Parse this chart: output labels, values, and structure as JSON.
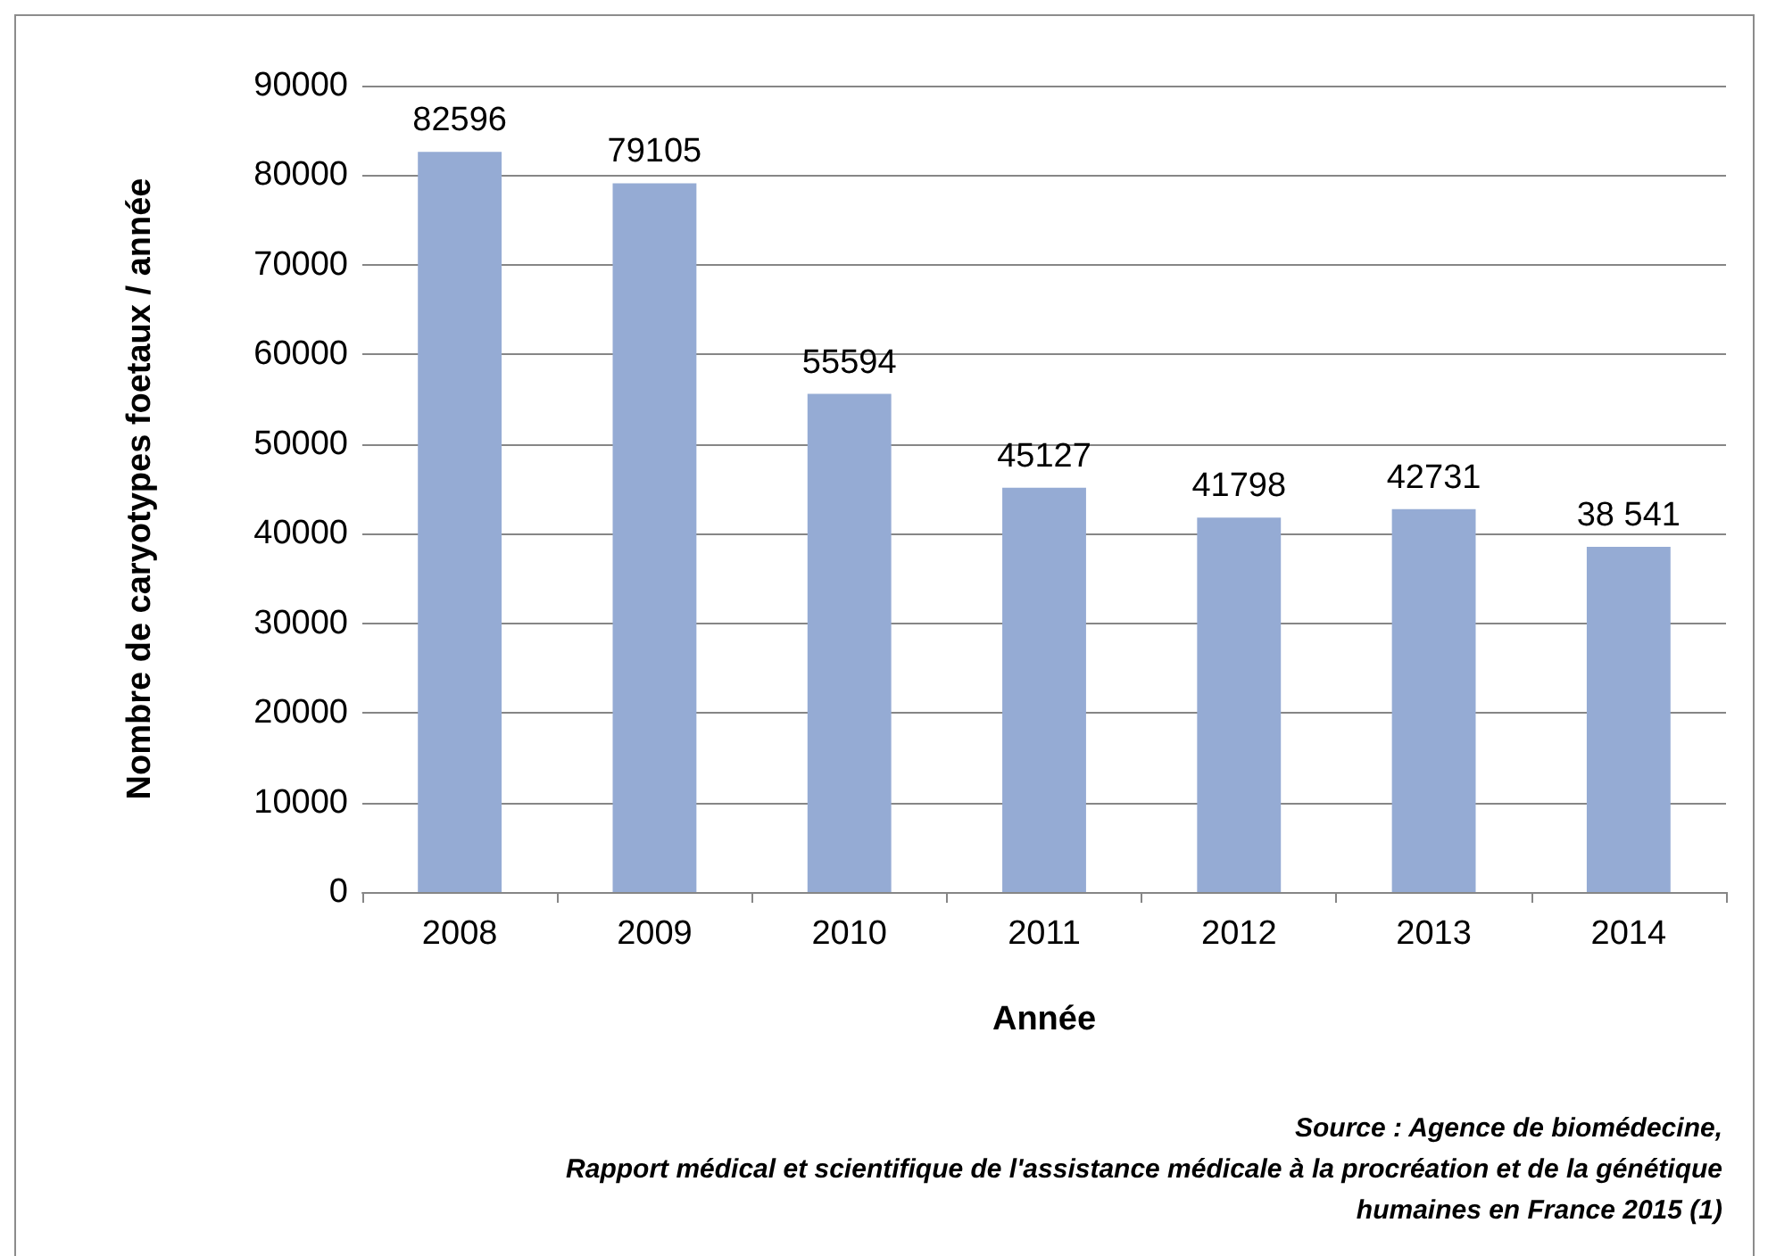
{
  "chart_data": {
    "type": "bar",
    "categories": [
      "2008",
      "2009",
      "2010",
      "2011",
      "2012",
      "2013",
      "2014"
    ],
    "values": [
      82596,
      79105,
      55594,
      45127,
      41798,
      42731,
      38541
    ],
    "value_labels": [
      "82596",
      "79105",
      "55594",
      "45127",
      "41798",
      "42731",
      "38 541"
    ],
    "color": "#95abd4",
    "xlabel": "Année",
    "ylabel": "Nombre de caryotypes foetaux / année",
    "ylim": [
      0,
      90000
    ],
    "yticks": [
      0,
      10000,
      20000,
      30000,
      40000,
      50000,
      60000,
      70000,
      80000,
      90000
    ],
    "grid": "y",
    "annotations": [
      "Source : Agence de biomédecine,",
      "Rapport médical et scientifique de l'assistance médicale à la procréation et de la génétique",
      "humaines en France 2015 (1)"
    ]
  }
}
